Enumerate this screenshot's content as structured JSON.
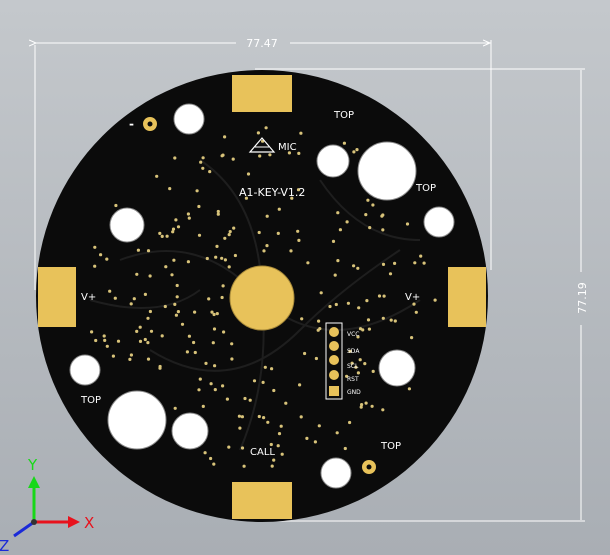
{
  "dimensions": {
    "width_label": "77.47",
    "height_label": "77.19"
  },
  "board": {
    "fill_color": "#0b0b0b",
    "pad_color": "#e8c25a",
    "silk_color": "#ffffff",
    "labels": {
      "top1": "TOP",
      "top2": "TOP",
      "top3": "TOP",
      "top4": "TOP",
      "mic": "MIC",
      "board_name": "A1-KEY-V1.2",
      "vplus_left": "V+",
      "vplus_right": "V+",
      "call": "CALL",
      "minus": "-",
      "pin_vcc": "VCC",
      "pin_sda": "SDA",
      "pin_scl": "SCL",
      "pin_rst": "RST",
      "pin_gnd": "GND"
    }
  },
  "axes": {
    "x_label": "X",
    "y_label": "Y",
    "z_label": "Z",
    "x_color": "#e8121d",
    "y_color": "#18d818",
    "z_color": "#1a2ad8"
  }
}
